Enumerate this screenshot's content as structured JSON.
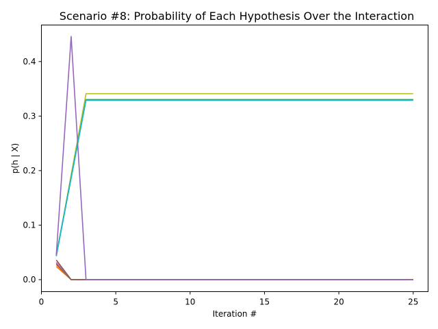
{
  "chart_data": {
    "type": "line",
    "title": "Scenario #8: Probability of Each Hypothesis Over the Interaction",
    "xlabel": "Iteration #",
    "ylabel": "p(h | X)",
    "xlim": [
      0,
      26
    ],
    "ylim": [
      -0.022,
      0.467
    ],
    "xticks": [
      0,
      5,
      10,
      15,
      20,
      25
    ],
    "yticks": [
      0.0,
      0.1,
      0.2,
      0.3,
      0.4
    ],
    "ytick_labels": [
      "0.0",
      "0.1",
      "0.2",
      "0.3",
      "0.4"
    ],
    "grid": false,
    "series": [
      {
        "color": "#bcbd22",
        "points": [
          [
            1,
            0.043
          ],
          [
            3,
            0.341
          ],
          [
            25,
            0.341
          ]
        ]
      },
      {
        "color": "#1f77b4",
        "points": [
          [
            1,
            0.045
          ],
          [
            3,
            0.33
          ],
          [
            25,
            0.33
          ]
        ]
      },
      {
        "color": "#2ca02c",
        "points": [
          [
            1,
            0.044
          ],
          [
            3,
            0.33
          ],
          [
            25,
            0.33
          ]
        ]
      },
      {
        "color": "#17becf",
        "points": [
          [
            1,
            0.043
          ],
          [
            3,
            0.329
          ],
          [
            25,
            0.329
          ]
        ]
      },
      {
        "color": "#ff7f0e",
        "points": [
          [
            1,
            0.024
          ],
          [
            2,
            0.0
          ],
          [
            25,
            0.0
          ]
        ]
      },
      {
        "color": "#d62728",
        "points": [
          [
            1,
            0.028
          ],
          [
            2,
            0.0
          ],
          [
            25,
            0.0
          ]
        ]
      },
      {
        "color": "#e377c2",
        "points": [
          [
            1,
            0.032
          ],
          [
            2,
            0.0
          ],
          [
            25,
            0.0
          ]
        ]
      },
      {
        "color": "#7f7f7f",
        "points": [
          [
            1,
            0.03
          ],
          [
            2,
            0.0
          ],
          [
            25,
            0.0
          ]
        ]
      },
      {
        "color": "#8c564b",
        "points": [
          [
            1,
            0.036
          ],
          [
            2,
            0.0
          ],
          [
            25,
            0.0
          ]
        ]
      },
      {
        "color": "#9467bd",
        "points": [
          [
            1,
            0.045
          ],
          [
            2,
            0.446
          ],
          [
            3,
            0.0
          ],
          [
            25,
            0.0
          ]
        ]
      }
    ]
  }
}
